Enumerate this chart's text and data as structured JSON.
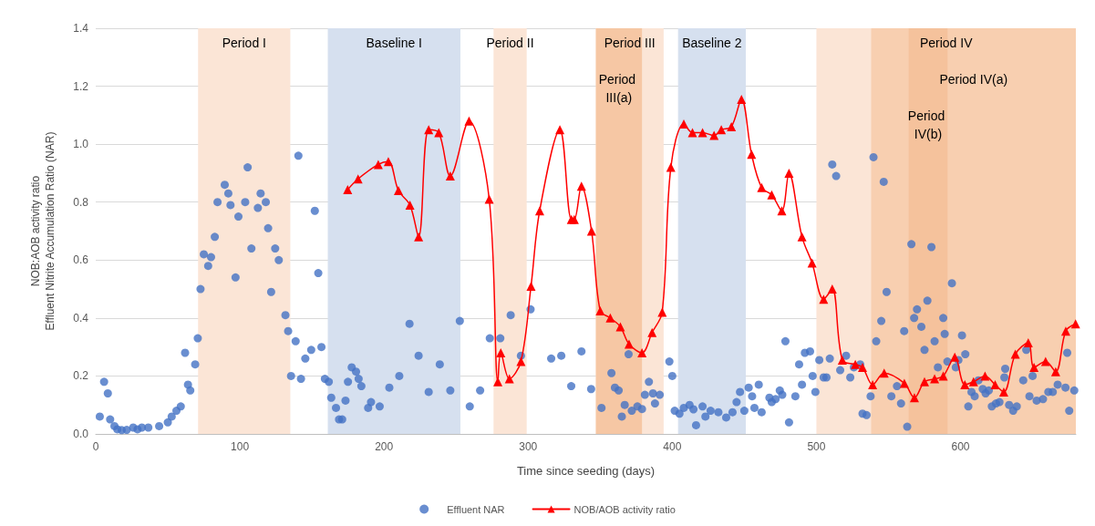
{
  "chart_data": {
    "type": "scatter",
    "xlabel": "Time since seeding (days)",
    "ylabel": "NOB:AOB activity ratio\nEffluent Nitrite Accumulation Ratio (NAR)",
    "xlim": [
      0,
      680
    ],
    "xticks": [
      0,
      100,
      200,
      300,
      400,
      500,
      600
    ],
    "ylim": [
      0,
      1.4
    ],
    "yticks": [
      {
        "value": 0,
        "label": "0.0"
      },
      {
        "value": 0.2,
        "label": "0.2"
      },
      {
        "value": 0.4,
        "label": "0.4"
      },
      {
        "value": 0.6,
        "label": "0.6"
      },
      {
        "value": 0.8,
        "label": "0.8"
      },
      {
        "value": 1,
        "label": "1.0"
      },
      {
        "value": 1.2,
        "label": "1.2"
      },
      {
        "value": 1.4,
        "label": "1.4"
      }
    ],
    "grid": "y",
    "legend": "bottom",
    "bands": [
      {
        "axis": "x",
        "from": 71,
        "to": 135,
        "label": "Period I",
        "color": "#fbe5d6"
      },
      {
        "axis": "x",
        "from": 161,
        "to": 253,
        "label": "Baseline I",
        "color": "#d6e0ef"
      },
      {
        "axis": "x",
        "from": 276,
        "to": 299,
        "label": "Period II",
        "color": "#fbe5d6"
      },
      {
        "axis": "x",
        "from": 347,
        "to": 394,
        "label": "Period III",
        "color": "#fbe5d6"
      },
      {
        "axis": "x",
        "from": 347,
        "to": 379,
        "label": "Period III(a)",
        "color": "#f6c7a4"
      },
      {
        "axis": "x",
        "from": 404,
        "to": 451,
        "label": "Baseline 2",
        "color": "#d6e0ef"
      },
      {
        "axis": "x",
        "from": 500,
        "to": 680,
        "label": "Period IV",
        "color": "#fbe5d6"
      },
      {
        "axis": "x",
        "from": 538,
        "to": 680,
        "label": "Period IV(a)",
        "color": "#f8cfb0"
      },
      {
        "axis": "x",
        "from": 564,
        "to": 591,
        "label": "Period IV(b)",
        "color": "#f5c29c"
      }
    ],
    "series": [
      {
        "name": "Effluent NAR",
        "marker": "circle",
        "color": "#4472c4",
        "x": [
          2.8,
          5.8,
          8.4,
          10,
          13,
          15,
          18,
          21.5,
          26,
          29,
          32,
          36.5,
          44,
          50,
          52.7,
          56,
          59,
          62,
          64,
          65.6,
          69,
          70.8,
          72.7,
          75,
          78,
          80,
          82.6,
          84.5,
          89.5,
          92,
          93.5,
          97,
          99,
          103.7,
          105.4,
          108,
          112.5,
          114.4,
          118,
          119.6,
          121.7,
          124.5,
          127,
          131.6,
          133.5,
          135.5,
          138.7,
          140.6,
          142.4,
          145.4,
          149.5,
          152,
          154.4,
          156.6,
          159,
          161.7,
          163.4,
          166.7,
          168.8,
          171,
          173.3,
          175,
          177.6,
          180.6,
          182.4,
          184.3,
          189,
          191,
          197,
          203.7,
          210.6,
          217.7,
          224,
          231,
          238.7,
          246,
          252.6,
          259.5,
          266.7,
          273.4,
          280.7,
          287.9,
          295,
          301.7,
          316,
          323,
          329.9,
          337,
          343.7,
          350.9,
          357.8,
          360.2,
          362.8,
          365,
          367,
          369.7,
          371.9,
          375.8,
          379,
          381,
          383.8,
          386.6,
          388,
          391.3,
          398,
          400,
          401.7,
          405,
          408,
          412,
          414.7,
          416.5,
          421,
          423,
          426.6,
          432,
          437.4,
          441.8,
          444.6,
          447,
          450,
          453,
          455.4,
          457,
          460,
          462,
          467.4,
          469,
          471.7,
          474.6,
          476.3,
          478.5,
          481,
          485.4,
          488,
          490,
          492,
          495.6,
          497.4,
          499.3,
          502,
          505,
          507,
          509.3,
          511,
          513.7,
          516.5,
          520.6,
          523.5,
          526,
          530.4,
          532,
          534.8,
          537.6,
          539.6,
          541.5,
          545,
          546.7,
          548.7,
          552,
          555.9,
          558.7,
          560.9,
          563,
          565.9,
          567.8,
          569.8,
          572.8,
          575,
          577,
          579.8,
          582,
          584.3,
          588,
          589,
          590.9,
          594,
          596.7,
          598.5,
          601,
          603.3,
          605.4,
          607.6,
          609.8,
          612.4,
          615.4,
          617.4,
          619.6,
          621.7,
          624.6,
          627,
          630.4,
          631,
          633.7,
          636.5,
          639,
          643.5,
          645.6,
          647.8,
          650,
          652.8,
          657.2,
          660.9,
          664,
          667.4,
          672.8,
          674,
          675.4,
          678.9
        ],
        "values": [
          0.06,
          0.18,
          0.14,
          0.05,
          0.027,
          0.016,
          0.013,
          0.014,
          0.022,
          0.016,
          0.022,
          0.022,
          0.027,
          0.04,
          0.06,
          0.08,
          0.095,
          0.28,
          0.17,
          0.15,
          0.24,
          0.33,
          0.5,
          0.62,
          0.58,
          0.61,
          0.68,
          0.8,
          0.86,
          0.83,
          0.79,
          0.54,
          0.75,
          0.8,
          0.92,
          0.64,
          0.78,
          0.83,
          0.8,
          0.71,
          0.49,
          0.64,
          0.6,
          0.41,
          0.355,
          0.2,
          0.32,
          0.96,
          0.19,
          0.26,
          0.29,
          0.77,
          0.555,
          0.3,
          0.19,
          0.18,
          0.125,
          0.09,
          0.05,
          0.05,
          0.115,
          0.18,
          0.23,
          0.215,
          0.19,
          0.165,
          0.09,
          0.11,
          0.095,
          0.16,
          0.2,
          0.38,
          0.27,
          0.145,
          0.24,
          0.15,
          0.39,
          0.095,
          0.15,
          0.33,
          0.33,
          0.41,
          0.27,
          0.43,
          0.26,
          0.27,
          0.165,
          0.285,
          0.155,
          0.09,
          0.21,
          0.16,
          0.15,
          0.06,
          0.1,
          0.275,
          0.08,
          0.095,
          0.086,
          0.135,
          0.18,
          0.14,
          0.105,
          0.135,
          0.25,
          0.2,
          0.08,
          0.07,
          0.09,
          0.1,
          0.085,
          0.03,
          0.095,
          0.06,
          0.08,
          0.075,
          0.057,
          0.075,
          0.11,
          0.145,
          0.08,
          0.16,
          0.13,
          0.09,
          0.17,
          0.075,
          0.125,
          0.11,
          0.12,
          0.15,
          0.135,
          0.32,
          0.04,
          0.13,
          0.24,
          0.17,
          0.28,
          0.285,
          0.2,
          0.145,
          0.255,
          0.195,
          0.195,
          0.26,
          0.93,
          0.89,
          0.22,
          0.27,
          0.195,
          0.23,
          0.24,
          0.07,
          0.065,
          0.13,
          0.955,
          0.32,
          0.39,
          0.87,
          0.49,
          0.13,
          0.165,
          0.105,
          0.355,
          0.025,
          0.655,
          0.4,
          0.43,
          0.37,
          0.29,
          0.46,
          0.645,
          0.32,
          0.23,
          0.4,
          0.345,
          0.25,
          0.52,
          0.23,
          0.255,
          0.34,
          0.275,
          0.095,
          0.145,
          0.13,
          0.185,
          0.155,
          0.14,
          0.15,
          0.095,
          0.105,
          0.11,
          0.195,
          0.225,
          0.1,
          0.08,
          0.095,
          0.185,
          0.29,
          0.13,
          0.2,
          0.115,
          0.12,
          0.145,
          0.145,
          0.17,
          0.16,
          0.28,
          0.08,
          0.15
        ]
      },
      {
        "name": "NOB/AOB activity ratio",
        "type": "line",
        "marker": "triangle",
        "line_style": "solid",
        "color": "#ff0000",
        "x": [
          174.8,
          182,
          196,
          203,
          210,
          218,
          224,
          231,
          238,
          246,
          259,
          273,
          279,
          281,
          287,
          295,
          302,
          308,
          322,
          330,
          332,
          337,
          344,
          350,
          357,
          364,
          370,
          379,
          386,
          393,
          399,
          408,
          414,
          421,
          429,
          434,
          441,
          448,
          455,
          462,
          469,
          476,
          481,
          490,
          497,
          505,
          511,
          518,
          527,
          532,
          539,
          547,
          561,
          568,
          575,
          582,
          588,
          596,
          603,
          609,
          617,
          624,
          630,
          638,
          647,
          651,
          659,
          666,
          673,
          679.8
        ],
        "values": [
          0.843,
          0.88,
          0.93,
          0.94,
          0.84,
          0.79,
          0.68,
          1.05,
          1.04,
          0.89,
          1.08,
          0.81,
          0.18,
          0.28,
          0.19,
          0.25,
          0.51,
          0.77,
          1.05,
          0.74,
          0.74,
          0.855,
          0.7,
          0.425,
          0.4,
          0.37,
          0.31,
          0.28,
          0.35,
          0.42,
          0.92,
          1.07,
          1.04,
          1.04,
          1.03,
          1.05,
          1.06,
          1.155,
          0.965,
          0.85,
          0.825,
          0.77,
          0.9,
          0.68,
          0.59,
          0.465,
          0.5,
          0.255,
          0.24,
          0.23,
          0.17,
          0.21,
          0.175,
          0.125,
          0.18,
          0.19,
          0.2,
          0.265,
          0.17,
          0.18,
          0.2,
          0.17,
          0.145,
          0.275,
          0.315,
          0.23,
          0.25,
          0.215,
          0.355,
          0.38
        ]
      }
    ]
  }
}
